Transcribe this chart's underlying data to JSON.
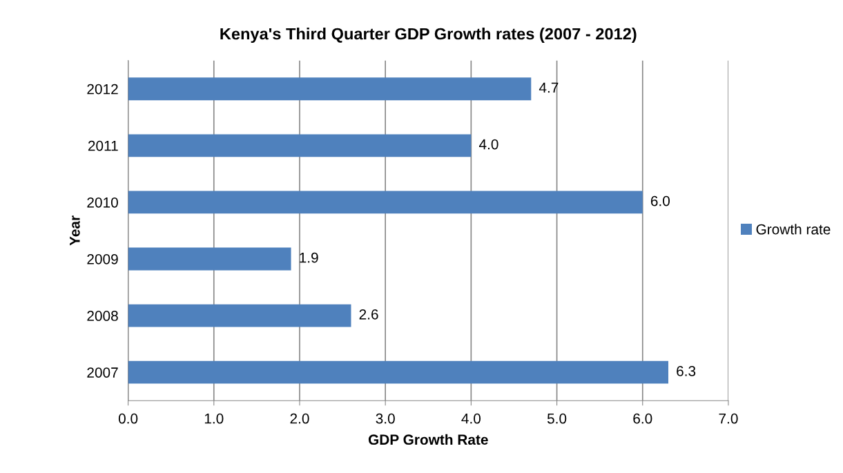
{
  "chart_data": {
    "type": "bar",
    "orientation": "horizontal",
    "title": "Kenya's Third Quarter GDP Growth rates (2007 - 2012)",
    "xlabel": "GDP Growth Rate",
    "ylabel": "Year",
    "categories": [
      "2012",
      "2011",
      "2010",
      "2009",
      "2008",
      "2007"
    ],
    "series": [
      {
        "name": "Growth rate",
        "color": "#4f81bd",
        "values": [
          4.7,
          4.0,
          6.0,
          1.9,
          2.6,
          6.3
        ],
        "value_labels": [
          "4.7",
          "4.0",
          "6.0",
          "1.9",
          "2.6",
          "6.3"
        ]
      }
    ],
    "xlim": [
      0,
      7
    ],
    "xticks": [
      {
        "value": 0,
        "label": "0.0"
      },
      {
        "value": 1,
        "label": "1.0"
      },
      {
        "value": 2,
        "label": "2.0"
      },
      {
        "value": 3,
        "label": "3.0"
      },
      {
        "value": 4,
        "label": "4.0"
      },
      {
        "value": 5,
        "label": "5.0"
      },
      {
        "value": 6,
        "label": "6.0"
      },
      {
        "value": 7,
        "label": "7.0"
      }
    ],
    "grid": "x",
    "legend": "right"
  }
}
